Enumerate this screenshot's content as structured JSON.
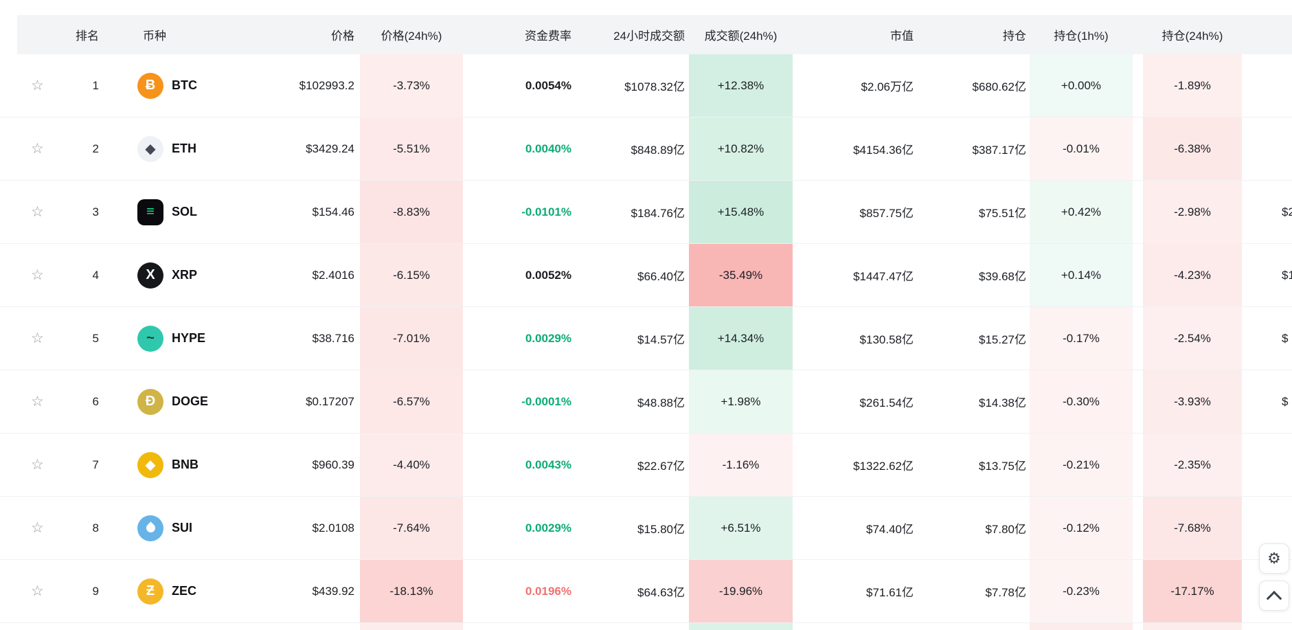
{
  "table": {
    "headers": {
      "rank": "排名",
      "coin": "币种",
      "price": "价格",
      "price_24h": "价格(24h%)",
      "funding": "资金费率",
      "volume": "24小时成交额",
      "volume_24h": "成交额(24h%)",
      "mcap": "市值",
      "oi": "持仓",
      "oi_1h": "持仓(1h%)",
      "oi_24h": "持仓(24h%)"
    },
    "rows": [
      {
        "rank": "1",
        "symbol": "BTC",
        "icon_glyph": "Ƀ",
        "icon_bg": "#f7931a",
        "icon_fg": "#ffffff",
        "icon_shape": "circle",
        "price": "$102993.2",
        "price_24h": "-3.73%",
        "price_24h_v": -3.73,
        "funding": "0.0054%",
        "funding_style": "dark",
        "volume": "$1078.32亿",
        "volume_24h": "+12.38%",
        "volume_24h_v": 12.38,
        "mcap": "$2.06万亿",
        "oi": "$680.62亿",
        "oi_1h": "+0.00%",
        "oi_1h_v": 0.02,
        "oi_24h": "-1.89%",
        "oi_24h_v": -1.89,
        "extra": ""
      },
      {
        "rank": "2",
        "symbol": "ETH",
        "icon_glyph": "◆",
        "icon_bg": "#eef1f6",
        "icon_fg": "#454a58",
        "icon_shape": "circle",
        "price": "$3429.24",
        "price_24h": "-5.51%",
        "price_24h_v": -5.51,
        "funding": "0.0040%",
        "funding_style": "green",
        "volume": "$848.89亿",
        "volume_24h": "+10.82%",
        "volume_24h_v": 10.82,
        "mcap": "$4154.36亿",
        "oi": "$387.17亿",
        "oi_1h": "-0.01%",
        "oi_1h_v": -0.01,
        "oi_24h": "-6.38%",
        "oi_24h_v": -6.38,
        "extra": ""
      },
      {
        "rank": "3",
        "symbol": "SOL",
        "icon_glyph": "≡",
        "icon_bg": "#0b0b0f",
        "icon_fg": "#14f195",
        "icon_shape": "rounded",
        "price": "$154.46",
        "price_24h": "-8.83%",
        "price_24h_v": -8.83,
        "funding": "-0.0101%",
        "funding_style": "green",
        "volume": "$184.76亿",
        "volume_24h": "+15.48%",
        "volume_24h_v": 15.48,
        "mcap": "$857.75亿",
        "oi": "$75.51亿",
        "oi_1h": "+0.42%",
        "oi_1h_v": 0.42,
        "oi_24h": "-2.98%",
        "oi_24h_v": -2.98,
        "extra": "$2"
      },
      {
        "rank": "4",
        "symbol": "XRP",
        "icon_glyph": "X",
        "icon_bg": "#15171a",
        "icon_fg": "#ffffff",
        "icon_shape": "circle",
        "price": "$2.4016",
        "price_24h": "-6.15%",
        "price_24h_v": -6.15,
        "funding": "0.0052%",
        "funding_style": "dark",
        "volume": "$66.40亿",
        "volume_24h": "-35.49%",
        "volume_24h_v": -35.49,
        "mcap": "$1447.47亿",
        "oi": "$39.68亿",
        "oi_1h": "+0.14%",
        "oi_1h_v": 0.14,
        "oi_24h": "-4.23%",
        "oi_24h_v": -4.23,
        "extra": "$1"
      },
      {
        "rank": "5",
        "symbol": "HYPE",
        "icon_glyph": "~",
        "icon_bg": "#2fc8ad",
        "icon_fg": "#0b3f35",
        "icon_shape": "circle",
        "price": "$38.716",
        "price_24h": "-7.01%",
        "price_24h_v": -7.01,
        "funding": "0.0029%",
        "funding_style": "green",
        "volume": "$14.57亿",
        "volume_24h": "+14.34%",
        "volume_24h_v": 14.34,
        "mcap": "$130.58亿",
        "oi": "$15.27亿",
        "oi_1h": "-0.17%",
        "oi_1h_v": -0.17,
        "oi_24h": "-2.54%",
        "oi_24h_v": -2.54,
        "extra": "$"
      },
      {
        "rank": "6",
        "symbol": "DOGE",
        "icon_glyph": "Ð",
        "icon_bg": "#d0b445",
        "icon_fg": "#ffffff",
        "icon_shape": "circle",
        "price": "$0.17207",
        "price_24h": "-6.57%",
        "price_24h_v": -6.57,
        "funding": "-0.0001%",
        "funding_style": "green",
        "volume": "$48.88亿",
        "volume_24h": "+1.98%",
        "volume_24h_v": 1.98,
        "mcap": "$261.54亿",
        "oi": "$14.38亿",
        "oi_1h": "-0.30%",
        "oi_1h_v": -0.3,
        "oi_24h": "-3.93%",
        "oi_24h_v": -3.93,
        "extra": "$"
      },
      {
        "rank": "7",
        "symbol": "BNB",
        "icon_glyph": "◆",
        "icon_bg": "#f0b90b",
        "icon_fg": "#ffffff",
        "icon_shape": "circle",
        "price": "$960.39",
        "price_24h": "-4.40%",
        "price_24h_v": -4.4,
        "funding": "0.0043%",
        "funding_style": "green",
        "volume": "$22.67亿",
        "volume_24h": "-1.16%",
        "volume_24h_v": -1.16,
        "mcap": "$1322.62亿",
        "oi": "$13.75亿",
        "oi_1h": "-0.21%",
        "oi_1h_v": -0.21,
        "oi_24h": "-2.35%",
        "oi_24h_v": -2.35,
        "extra": ""
      },
      {
        "rank": "8",
        "symbol": "SUI",
        "icon_glyph": "",
        "icon_bg": "#66b3e8",
        "icon_fg": "#ffffff",
        "icon_shape": "drop",
        "price": "$2.0108",
        "price_24h": "-7.64%",
        "price_24h_v": -7.64,
        "funding": "0.0029%",
        "funding_style": "green",
        "volume": "$15.80亿",
        "volume_24h": "+6.51%",
        "volume_24h_v": 6.51,
        "mcap": "$74.40亿",
        "oi": "$7.80亿",
        "oi_1h": "-0.12%",
        "oi_1h_v": -0.12,
        "oi_24h": "-7.68%",
        "oi_24h_v": -7.68,
        "extra": ""
      },
      {
        "rank": "9",
        "symbol": "ZEC",
        "icon_glyph": "Ƶ",
        "icon_bg": "#f4b728",
        "icon_fg": "#ffffff",
        "icon_shape": "circle",
        "price": "$439.92",
        "price_24h": "-18.13%",
        "price_24h_v": -18.13,
        "funding": "0.0196%",
        "funding_style": "red",
        "volume": "$64.63亿",
        "volume_24h": "-19.96%",
        "volume_24h_v": -19.96,
        "mcap": "$71.61亿",
        "oi": "$7.78亿",
        "oi_1h": "-0.23%",
        "oi_1h_v": -0.23,
        "oi_24h": "-17.17%",
        "oi_24h_v": -17.17,
        "extra": ""
      }
    ],
    "partial_row": {
      "price_24h_sign": "neg",
      "volume_24h_sign": "pos",
      "oi_1h_sign": "neg",
      "oi_24h_sign": "neg"
    }
  },
  "icons": {
    "favorite": "☆",
    "settings": "⚙"
  },
  "colors": {
    "positive_tint_base": "#1aad6d",
    "negative_tint_base": "#ef5350",
    "funding_green": "#0cab76",
    "funding_red": "#f17070",
    "header_bg": "#f3f4f6"
  }
}
